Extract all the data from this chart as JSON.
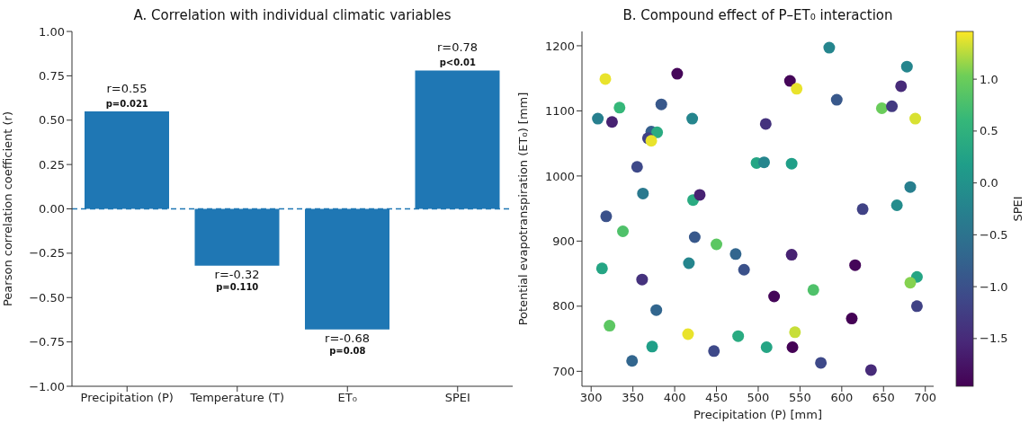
{
  "chart_data": [
    {
      "type": "bar",
      "title": "A. Correlation with individual climatic variables",
      "ylabel": "Pearson correlation coefficient (r)",
      "categories": [
        "Precipitation (P)",
        "Temperature (T)",
        "ET₀",
        "SPEI"
      ],
      "values": [
        0.55,
        -0.32,
        -0.68,
        0.78
      ],
      "color": "#1f77b4",
      "value_labels": [
        "r=0.55",
        "r=-0.32",
        "r=-0.68",
        "r=0.78"
      ],
      "annotations": [
        {
          "text": "p=0.021",
          "x": "Precipitation (P)",
          "y": 0.55
        },
        {
          "text": "p=0.110",
          "x": "Temperature (T)",
          "y": -0.32
        },
        {
          "text": "p=0.08",
          "x": "ET₀",
          "y": -0.68
        },
        {
          "text": "p<0.01",
          "x": "SPEI",
          "y": 0.78
        }
      ],
      "ref_lines": [
        {
          "axis": "y",
          "value": 0,
          "color": "#1f77b4",
          "line_style": "dashed"
        }
      ],
      "ylim": [
        -1,
        1
      ],
      "yticks": [
        {
          "value": -1,
          "label": "−1.00"
        },
        {
          "value": -0.75,
          "label": "−0.75"
        },
        {
          "value": -0.5,
          "label": "−0.50"
        },
        {
          "value": -0.25,
          "label": "−0.25"
        },
        {
          "value": 0,
          "label": "0.00"
        },
        {
          "value": 0.25,
          "label": "0.25"
        },
        {
          "value": 0.5,
          "label": "0.50"
        },
        {
          "value": 0.75,
          "label": "0.75"
        },
        {
          "value": 1,
          "label": "1.00"
        }
      ]
    },
    {
      "type": "scatter",
      "title": "B. Compound effect of P–ET₀ interaction",
      "xlabel": "Precipitation (P) [mm]",
      "ylabel": "Potential evapotranspiration (ET₀) [mm]",
      "clabel": "SPEI",
      "marker": "circle",
      "x": [
        317,
        308,
        334,
        325,
        384,
        403,
        421,
        372,
        379,
        368,
        372,
        355,
        362,
        422,
        430,
        318,
        585,
        678,
        538,
        546,
        671,
        594,
        648,
        660,
        688,
        509,
        498,
        507,
        540,
        682,
        666,
        625,
        338,
        424,
        450,
        473,
        313,
        417,
        361,
        378,
        322,
        416,
        476,
        373,
        447,
        349,
        540,
        483,
        616,
        690,
        682,
        566,
        519,
        690,
        612,
        544,
        510,
        541,
        575,
        635
      ],
      "values": [
        1149,
        1088,
        1105,
        1083,
        1110,
        1157,
        1088,
        1068,
        1067,
        1058,
        1054,
        1014,
        973,
        963,
        971,
        938,
        1197,
        1168,
        1146,
        1134,
        1138,
        1117,
        1104,
        1107,
        1088,
        1080,
        1020,
        1021,
        1019,
        983,
        955,
        949,
        915,
        906,
        895,
        880,
        858,
        866,
        841,
        794,
        770,
        757,
        754,
        738,
        731,
        716,
        879,
        856,
        863,
        845,
        836,
        825,
        815,
        800,
        781,
        760,
        737,
        737,
        713,
        702
      ],
      "cvalues": [
        1.4,
        -0.3,
        0.6,
        -1.6,
        -0.9,
        -1.9,
        -0.2,
        -0.8,
        0.4,
        -1.2,
        1.4,
        -1.1,
        -0.4,
        0.4,
        -1.6,
        -1.0,
        -0.2,
        -0.2,
        -1.9,
        1.4,
        -1.5,
        -0.9,
        1.0,
        -1.3,
        1.35,
        -1.4,
        0.3,
        -0.2,
        0.2,
        -0.3,
        -0.1,
        -1.2,
        0.8,
        -0.9,
        0.9,
        -0.7,
        0.3,
        -0.2,
        -1.4,
        -0.7,
        0.9,
        1.4,
        0.4,
        0.2,
        -1.1,
        -0.7,
        -1.6,
        -1.0,
        -1.9,
        0.3,
        1.1,
        0.8,
        -1.9,
        -1.2,
        -1.95,
        1.3,
        0.3,
        -1.95,
        -1.1,
        -1.5
      ],
      "clim": [
        -1.96,
        1.46
      ],
      "cticks": [
        {
          "value": -1.5,
          "label": "−1.5"
        },
        {
          "value": -1,
          "label": "−1.0"
        },
        {
          "value": -0.5,
          "label": "−0.5"
        },
        {
          "value": 0,
          "label": "0.0"
        },
        {
          "value": 0.5,
          "label": "0.5"
        },
        {
          "value": 1,
          "label": "1.0"
        }
      ],
      "xlim": [
        289,
        710
      ],
      "xticks": [
        300,
        350,
        400,
        450,
        500,
        550,
        600,
        650,
        700
      ],
      "ylim": [
        677,
        1222
      ],
      "yticks": [
        700,
        800,
        900,
        1000,
        1100,
        1200
      ]
    }
  ]
}
